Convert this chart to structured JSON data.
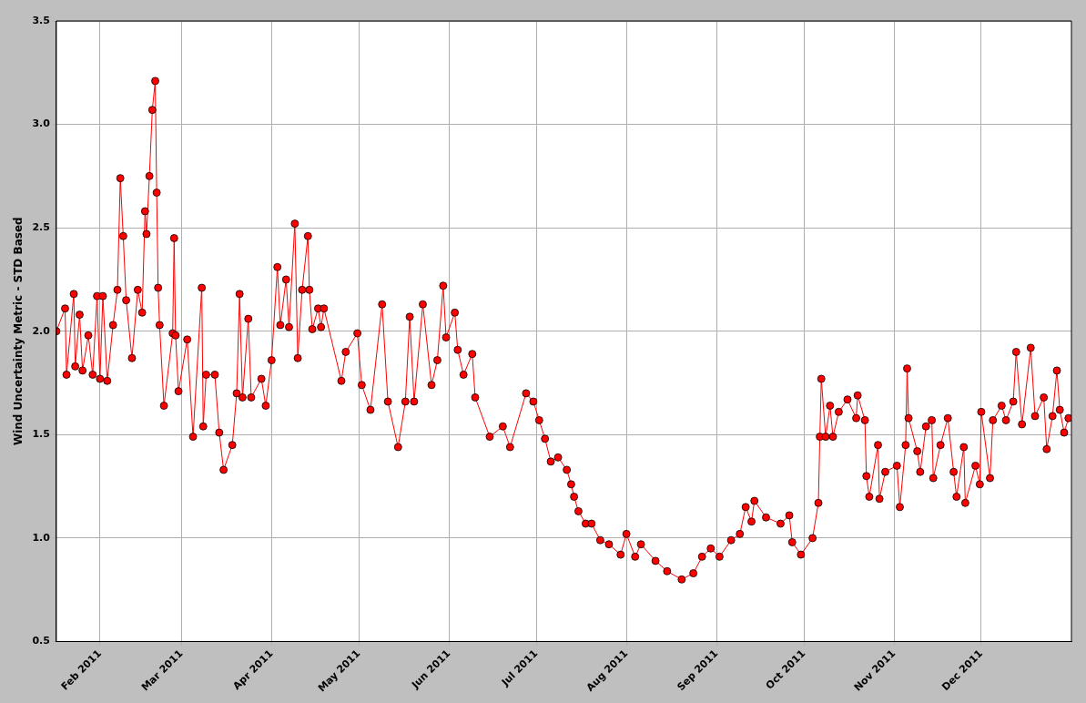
{
  "chart_data": {
    "type": "line",
    "ylabel": "Wind Uncertainty Metric - STD Based",
    "x": [
      "2011-01-17",
      "2011-01-20",
      "2011-01-20T12:00",
      "2011-01-23",
      "2011-01-23T12:00",
      "2011-01-25",
      "2011-01-26",
      "2011-01-28",
      "2011-01-29T12:00",
      "2011-01-31",
      "2011-02-01",
      "2011-02-02",
      "2011-02-03T12:00",
      "2011-02-05T12:00",
      "2011-02-07",
      "2011-02-08",
      "2011-02-09",
      "2011-02-10",
      "2011-02-12",
      "2011-02-14",
      "2011-02-15T12:00",
      "2011-02-16T12:00",
      "2011-02-17",
      "2011-02-18",
      "2011-02-19",
      "2011-02-20",
      "2011-02-20T12:00",
      "2011-02-21",
      "2011-02-21T12:00",
      "2011-02-23",
      "2011-02-26",
      "2011-02-26T12:00",
      "2011-02-27",
      "2011-02-28",
      "2011-03-03",
      "2011-03-05",
      "2011-03-08",
      "2011-03-08T12:00",
      "2011-03-09T12:00",
      "2011-03-12T12:00",
      "2011-03-14",
      "2011-03-15T12:00",
      "2011-03-18T12:00",
      "2011-03-20",
      "2011-03-21",
      "2011-03-22",
      "2011-03-24",
      "2011-03-25",
      "2011-03-28T12:00",
      "2011-03-30",
      "2011-04-01",
      "2011-04-03",
      "2011-04-04",
      "2011-04-06",
      "2011-04-07",
      "2011-04-09",
      "2011-04-10",
      "2011-04-11T12:00",
      "2011-04-13T12:00",
      "2011-04-14",
      "2011-04-15",
      "2011-04-17",
      "2011-04-18",
      "2011-04-19",
      "2011-04-25",
      "2011-04-26T12:00",
      "2011-04-30T12:00",
      "2011-05-02",
      "2011-05-05",
      "2011-05-09",
      "2011-05-11",
      "2011-05-14T12:00",
      "2011-05-17",
      "2011-05-18T12:00",
      "2011-05-20",
      "2011-05-23",
      "2011-05-26",
      "2011-05-28",
      "2011-05-30",
      "2011-05-31",
      "2011-06-03",
      "2011-06-04",
      "2011-06-06",
      "2011-06-09",
      "2011-06-10",
      "2011-06-15",
      "2011-06-19T12:00",
      "2011-06-22",
      "2011-06-27T12:00",
      "2011-06-30",
      "2011-07-02",
      "2011-07-04",
      "2011-07-06",
      "2011-07-08T12:00",
      "2011-07-11T12:00",
      "2011-07-13",
      "2011-07-14",
      "2011-07-15T12:00",
      "2011-07-18",
      "2011-07-20",
      "2011-07-23",
      "2011-07-26",
      "2011-07-30",
      "2011-08-01",
      "2011-08-04",
      "2011-08-06",
      "2011-08-11",
      "2011-08-15",
      "2011-08-20",
      "2011-08-24",
      "2011-08-27",
      "2011-08-30",
      "2011-09-02",
      "2011-09-06",
      "2011-09-09",
      "2011-09-11",
      "2011-09-13",
      "2011-09-14",
      "2011-09-18",
      "2011-09-23",
      "2011-09-26",
      "2011-09-27",
      "2011-09-30",
      "2011-10-04",
      "2011-10-06",
      "2011-10-06T12:00",
      "2011-10-07",
      "2011-10-08T12:00",
      "2011-10-10",
      "2011-10-11",
      "2011-10-13",
      "2011-10-16",
      "2011-10-19",
      "2011-10-19T12:00",
      "2011-10-22",
      "2011-10-22T12:00",
      "2011-10-23T12:00",
      "2011-10-26T12:00",
      "2011-10-27",
      "2011-10-29",
      "2011-11-02",
      "2011-11-03",
      "2011-11-05",
      "2011-11-05T12:00",
      "2011-11-06",
      "2011-11-09",
      "2011-11-10",
      "2011-11-12",
      "2011-11-14",
      "2011-11-14T12:00",
      "2011-11-17",
      "2011-11-19T12:00",
      "2011-11-21T12:00",
      "2011-11-22T12:00",
      "2011-11-25",
      "2011-11-25T12:00",
      "2011-11-29",
      "2011-11-30T12:00",
      "2011-12-01",
      "2011-12-04",
      "2011-12-05",
      "2011-12-08",
      "2011-12-09T12:00",
      "2011-12-12",
      "2011-12-13",
      "2011-12-15",
      "2011-12-18",
      "2011-12-19T12:00",
      "2011-12-22T12:00",
      "2011-12-23T12:00",
      "2011-12-25T12:00",
      "2011-12-27",
      "2011-12-28",
      "2011-12-29T12:00",
      "2011-12-31"
    ],
    "values": [
      2.0,
      2.11,
      1.79,
      2.18,
      1.83,
      2.08,
      1.81,
      1.98,
      1.79,
      2.17,
      1.77,
      2.17,
      1.76,
      2.03,
      2.2,
      2.74,
      2.46,
      2.15,
      1.87,
      2.2,
      2.09,
      2.58,
      2.47,
      2.75,
      3.07,
      3.21,
      2.67,
      2.21,
      2.03,
      1.64,
      1.99,
      2.45,
      1.98,
      1.71,
      1.96,
      1.49,
      2.21,
      1.54,
      1.79,
      1.79,
      1.51,
      1.33,
      1.45,
      1.7,
      2.18,
      1.68,
      2.06,
      1.68,
      1.77,
      1.64,
      1.86,
      2.31,
      2.03,
      2.25,
      2.02,
      2.52,
      1.87,
      2.2,
      2.46,
      2.2,
      2.01,
      2.11,
      2.02,
      2.11,
      1.76,
      1.9,
      1.99,
      1.74,
      1.62,
      2.13,
      1.66,
      1.44,
      1.66,
      2.07,
      1.66,
      2.13,
      1.74,
      1.86,
      2.22,
      1.97,
      2.09,
      1.91,
      1.79,
      1.89,
      1.68,
      1.49,
      1.54,
      1.44,
      1.7,
      1.66,
      1.57,
      1.48,
      1.37,
      1.39,
      1.33,
      1.26,
      1.2,
      1.13,
      1.07,
      1.07,
      0.99,
      0.97,
      0.92,
      1.02,
      0.91,
      0.97,
      0.89,
      0.84,
      0.8,
      0.83,
      0.91,
      0.95,
      0.91,
      0.99,
      1.02,
      1.15,
      1.08,
      1.18,
      1.1,
      1.07,
      1.11,
      0.98,
      0.92,
      1.0,
      1.17,
      1.49,
      1.77,
      1.49,
      1.64,
      1.49,
      1.61,
      1.67,
      1.58,
      1.69,
      1.57,
      1.3,
      1.2,
      1.45,
      1.19,
      1.32,
      1.35,
      1.15,
      1.45,
      1.82,
      1.58,
      1.42,
      1.32,
      1.54,
      1.57,
      1.29,
      1.45,
      1.58,
      1.32,
      1.2,
      1.44,
      1.17,
      1.35,
      1.26,
      1.61,
      1.29,
      1.57,
      1.64,
      1.57,
      1.66,
      1.9,
      1.55,
      1.92,
      1.59,
      1.68,
      1.43,
      1.59,
      1.81,
      1.62,
      1.51,
      1.58
    ],
    "color": "#ff0000",
    "marker": "circle",
    "line_style": "solid",
    "grid": true,
    "xlim": [
      "2011-01-17",
      "2012-01-01"
    ],
    "xticks": [
      {
        "value": "2011-02-01",
        "label": "Feb 2011"
      },
      {
        "value": "2011-03-01",
        "label": "Mar 2011"
      },
      {
        "value": "2011-04-01",
        "label": "Apr 2011"
      },
      {
        "value": "2011-05-01",
        "label": "May 2011"
      },
      {
        "value": "2011-06-01",
        "label": "Jun 2011"
      },
      {
        "value": "2011-07-01",
        "label": "Jul 2011"
      },
      {
        "value": "2011-08-01",
        "label": "Aug 2011"
      },
      {
        "value": "2011-09-01",
        "label": "Sep 2011"
      },
      {
        "value": "2011-10-01",
        "label": "Oct 2011"
      },
      {
        "value": "2011-11-01",
        "label": "Nov 2011"
      },
      {
        "value": "2011-12-01",
        "label": "Dec 2011"
      }
    ],
    "ylim": [
      0.5,
      3.5
    ],
    "yticks": [
      0.5,
      {
        "value": 1,
        "label": "1.0"
      },
      1.5,
      {
        "value": 2,
        "label": "2.0"
      },
      2.5,
      {
        "value": 3,
        "label": "3.0"
      },
      3.5
    ]
  }
}
